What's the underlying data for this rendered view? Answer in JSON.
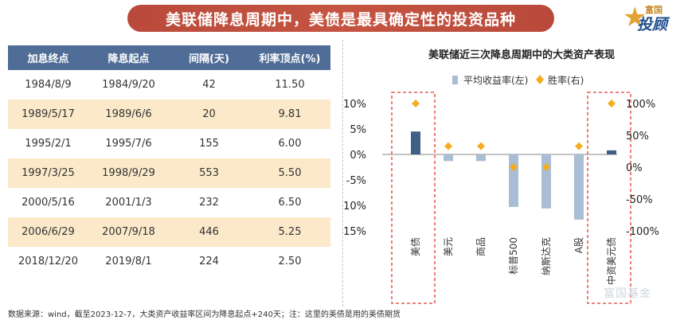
{
  "banner": {
    "title": "美联储降息周期中，美债是最具确定性的投资品种"
  },
  "logo": {
    "small": "富国",
    "big": "投顾"
  },
  "table": {
    "headers": [
      "加息终点",
      "降息起点",
      "间隔(天)",
      "利率顶点(%)"
    ],
    "rows": [
      [
        "1984/8/9",
        "1984/9/20",
        "42",
        "11.50"
      ],
      [
        "1989/5/17",
        "1989/6/6",
        "20",
        "9.81"
      ],
      [
        "1995/2/1",
        "1995/7/6",
        "155",
        "6.00"
      ],
      [
        "1997/3/25",
        "1998/9/29",
        "553",
        "5.50"
      ],
      [
        "2000/5/16",
        "2001/1/3",
        "232",
        "6.50"
      ],
      [
        "2006/6/29",
        "2007/9/18",
        "446",
        "5.25"
      ],
      [
        "2018/12/20",
        "2019/8/1",
        "224",
        "2.50"
      ]
    ]
  },
  "chart_data": {
    "type": "bar",
    "title": "美联储近三次降息周期中的大类资产表现",
    "categories": [
      "美债",
      "美元",
      "商品",
      "标普500",
      "纳斯达克",
      "A股",
      "中资美元债"
    ],
    "series": [
      {
        "name": "平均收益率(左)",
        "type": "bar",
        "axis": "left",
        "values": [
          4.5,
          -1.3,
          -1.3,
          -10.3,
          -10.6,
          -12.8,
          0.8
        ]
      },
      {
        "name": "胜率(右)",
        "type": "scatter",
        "axis": "right",
        "values": [
          100,
          33,
          33,
          0,
          0,
          33,
          100
        ]
      }
    ],
    "left_axis": {
      "ticks": [
        10,
        5,
        0,
        -5,
        -10,
        -15
      ],
      "tick_labels": [
        "10%",
        "5%",
        "0%",
        "-5%",
        "-10%",
        "-15%"
      ],
      "ylim": [
        -15,
        10
      ]
    },
    "right_axis": {
      "ticks": [
        100,
        50,
        0,
        -50,
        -100
      ],
      "tick_labels": [
        "100%",
        "50%",
        "0%",
        "-50%",
        "-100%"
      ],
      "ylim": [
        -100,
        100
      ]
    },
    "highlighted_categories": [
      "美债",
      "中资美元债"
    ],
    "legend_position": "top",
    "grid": false,
    "colors": {
      "bar_highlight": "#3f5f87",
      "bar": "#a9bdd4",
      "marker": "#f4ad1e",
      "highlight_box": "#e03c31"
    }
  },
  "footer": {
    "note": "数据来源：wind，截至2023-12-7，大类资产收益率区间为降息起点+240天；注：这里的美债是用的美债期货"
  },
  "watermark": {
    "text": "富国基金"
  }
}
